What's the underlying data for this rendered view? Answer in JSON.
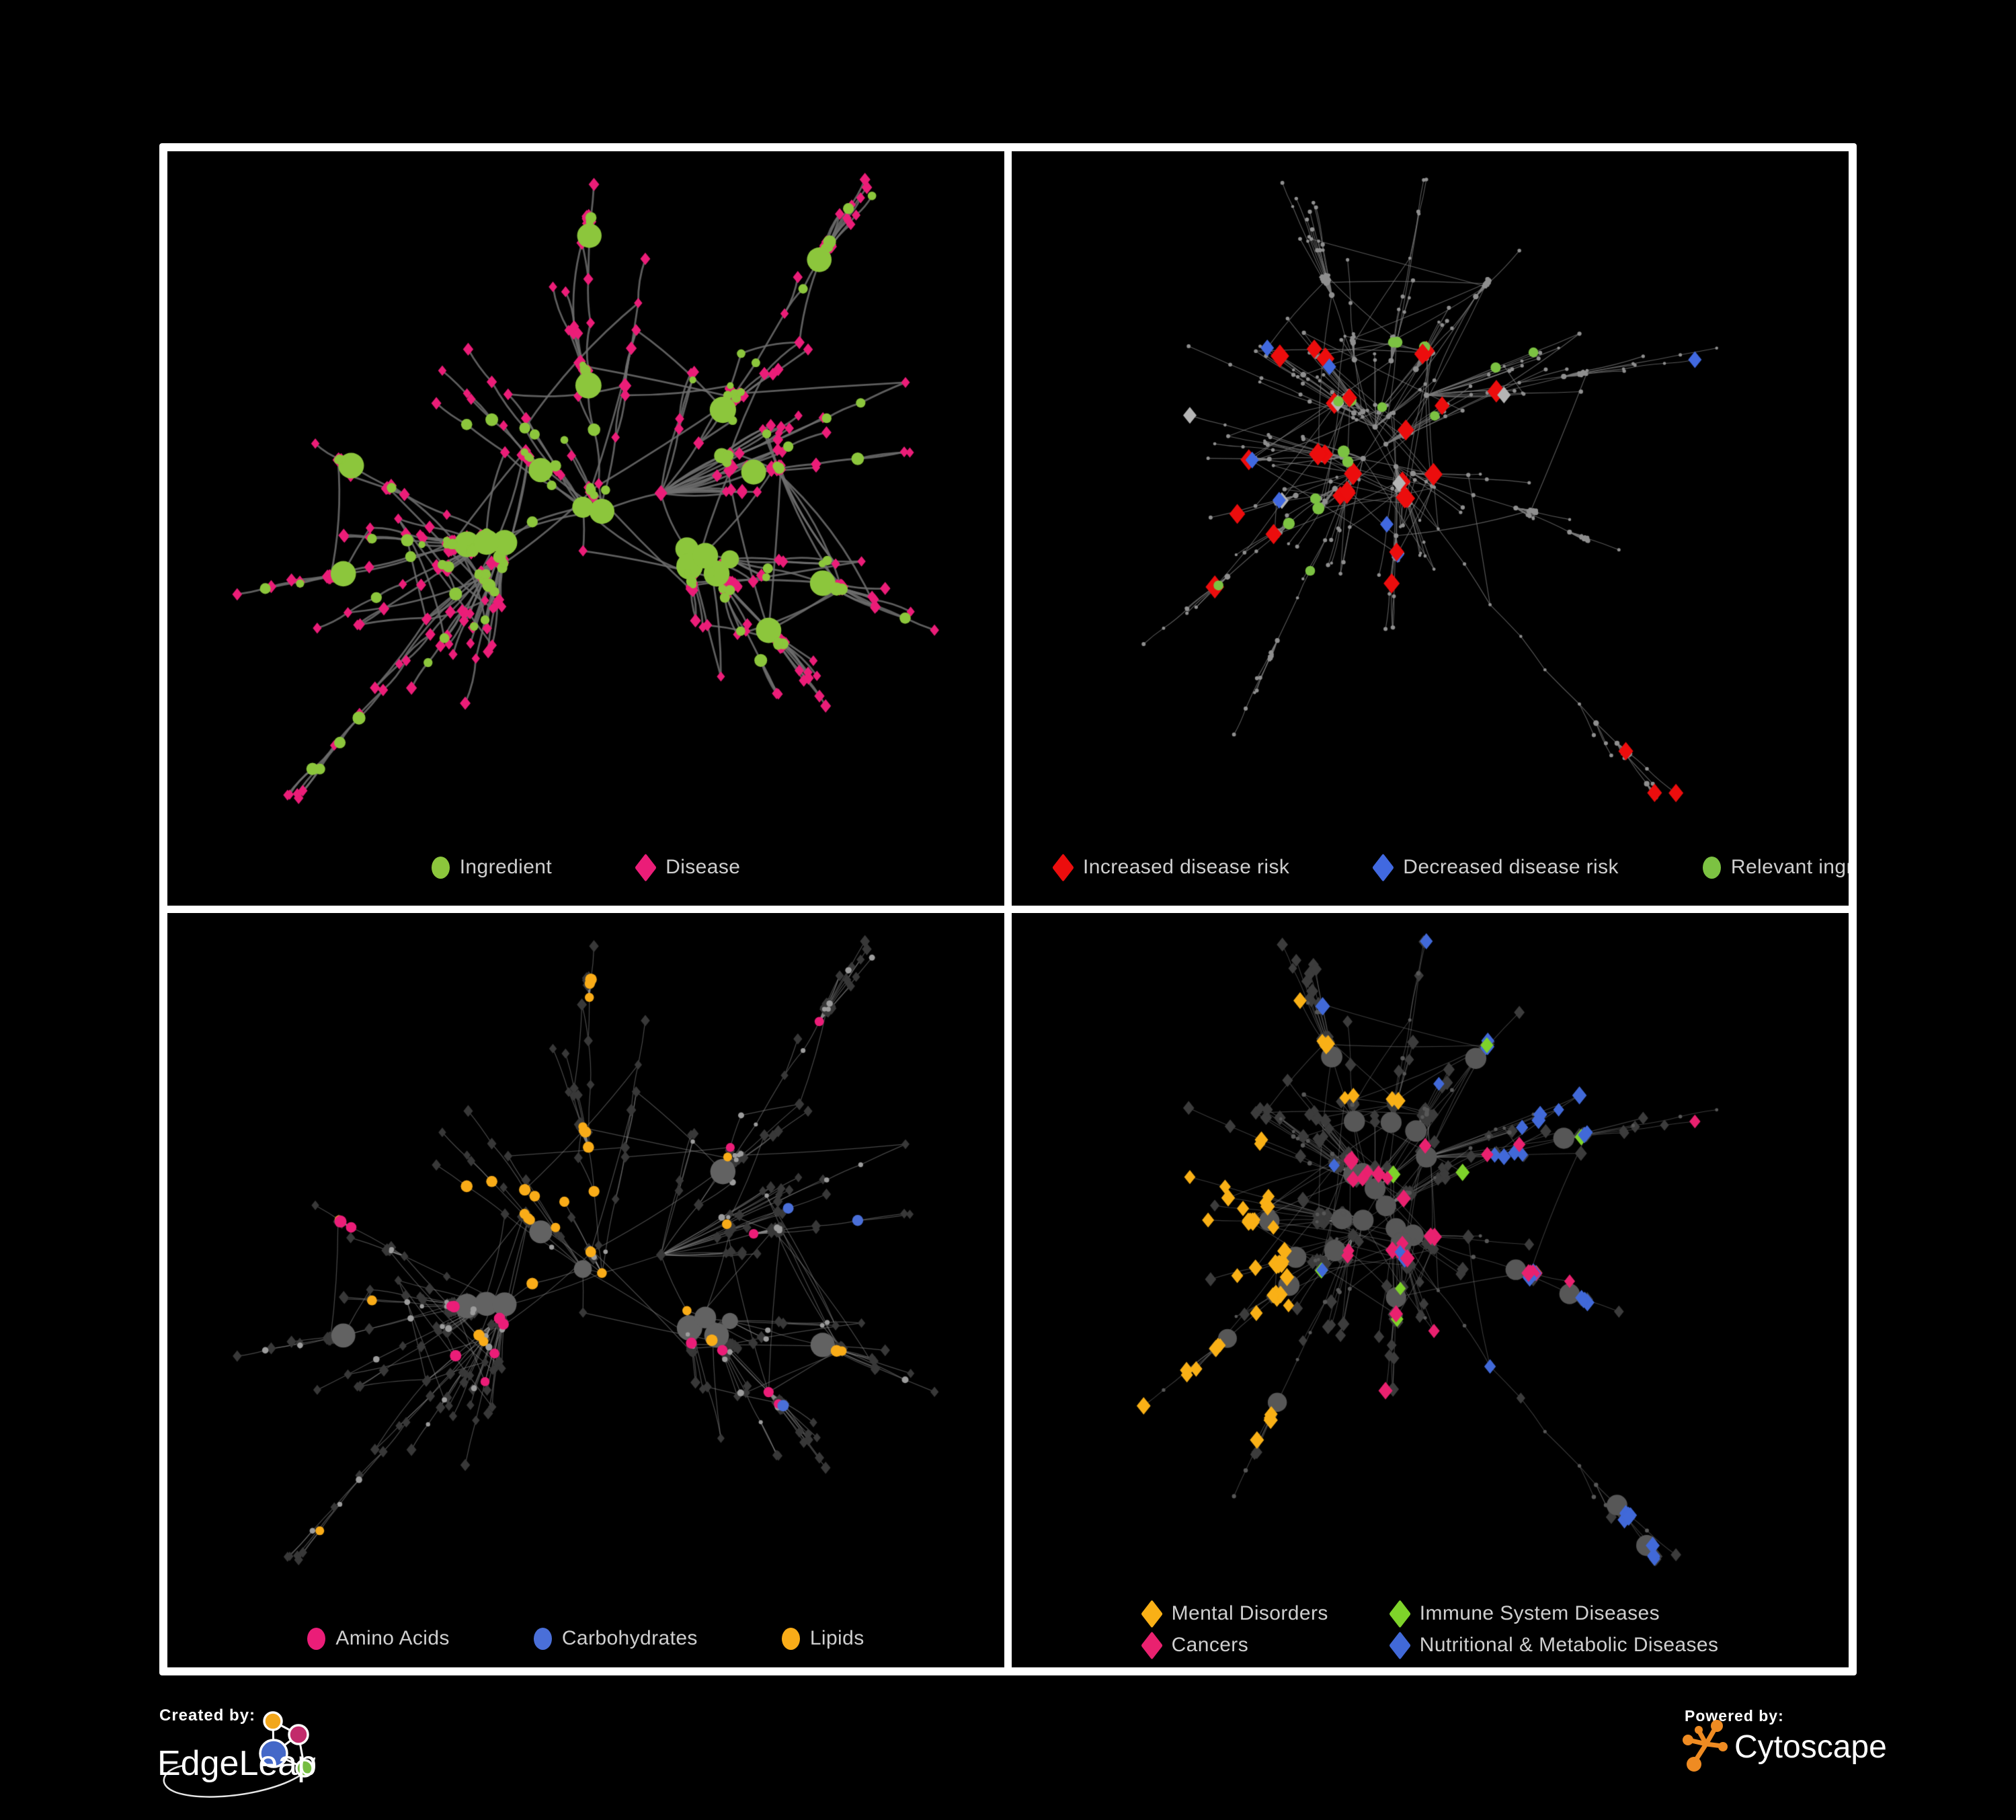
{
  "poster": {
    "background": "#000000",
    "frame_color": "#FFFFFF"
  },
  "panels": [
    {
      "name": "ingredient-disease-network",
      "legend": [
        {
          "label": "Ingredient",
          "shape": "circle",
          "color": "#8CC63C"
        },
        {
          "label": "Disease",
          "shape": "diamond",
          "color": "#EB1D78"
        }
      ],
      "style": {
        "edge_color": "#6E6E6E"
      }
    },
    {
      "name": "disease-risk-network",
      "legend": [
        {
          "label": "Increased disease risk",
          "shape": "diamond",
          "color": "#EC0D0D"
        },
        {
          "label": "Decreased disease risk",
          "shape": "diamond",
          "color": "#4169E0"
        },
        {
          "label": "Relevant ingredient",
          "shape": "circle",
          "color": "#7CC242"
        }
      ],
      "style": {
        "edge_color": "#7C7C7C",
        "base_node": "#8F8F8F",
        "unlabeled_marker": "#B5B5B5"
      }
    },
    {
      "name": "nutrient-class-network",
      "legend": [
        {
          "label": "Amino Acids",
          "shape": "circle",
          "color": "#EB1D78"
        },
        {
          "label": "Carbohydrates",
          "shape": "circle",
          "color": "#4A6FD8"
        },
        {
          "label": "Lipids",
          "shape": "circle",
          "color": "#F9AC18"
        }
      ],
      "style": {
        "edge_color": "#8C8C8C",
        "ingredient_base": "#9C9C9C",
        "ingredient_hub": "#626262",
        "disease_base": "#383838"
      }
    },
    {
      "name": "disease-category-network",
      "legend": [
        {
          "label": "Mental Disorders",
          "shape": "diamond",
          "color": "#F9B016"
        },
        {
          "label": "Immune System Diseases",
          "shape": "diamond",
          "color": "#7ED32A"
        },
        {
          "label": "Cancers",
          "shape": "diamond",
          "color": "#E9216F"
        },
        {
          "label": "Nutritional & Metabolic Diseases",
          "shape": "diamond",
          "color": "#4169D8"
        }
      ],
      "style": {
        "edge_color": "#8A8A8A",
        "disease_base": "#3C3C3C",
        "ingredient_base": "#575757"
      }
    }
  ],
  "footer": {
    "created_by_label": "Created by:",
    "created_by_brand": "EdgeLeap",
    "powered_by_label": "Powered by:",
    "powered_by_brand": "Cytoscape",
    "edgeleap_colors": {
      "orange": "#F2A71D",
      "magenta": "#C22B6B",
      "blue": "#4468C8",
      "green": "#77BD43"
    },
    "cytoscape_orange": "#EF8B22"
  }
}
